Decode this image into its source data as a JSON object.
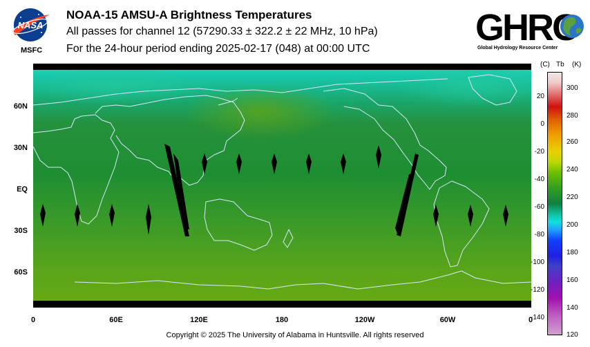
{
  "header": {
    "title": "NOAA-15 AMSU-A Brightness Temperatures",
    "line2": "All passes for channel 12 (57290.33 ± 322.2 ± 22 MHz, 10 hPa)",
    "line3": "For the 24-hour period ending 2025-02-17 (048) at 00:00 UTC"
  },
  "nasa_logo": {
    "label": "MSFC"
  },
  "ghrc_logo": {
    "text": "GHRC",
    "tagline": "Global Hydrology Resource Center"
  },
  "map": {
    "lat_labels": [
      "60N",
      "30N",
      "EQ",
      "30S",
      "60S"
    ],
    "lon_labels": [
      "0",
      "60E",
      "120E",
      "180",
      "120W",
      "60W",
      "0"
    ]
  },
  "colorbar": {
    "unit_c": "(C)",
    "unit_tb": "Tb",
    "unit_k": "(K)",
    "celsius_ticks": [
      "20",
      "0",
      "-20",
      "-40",
      "-60",
      "-80",
      "-100",
      "-120",
      "-140"
    ],
    "kelvin_ticks": [
      "300",
      "280",
      "260",
      "240",
      "220",
      "200",
      "180",
      "160",
      "140",
      "120"
    ],
    "range_k": [
      120,
      310
    ]
  },
  "footer": {
    "copyright": "Copyright © 2025 The University of Alabama in Huntsville.  All rights reserved"
  }
}
